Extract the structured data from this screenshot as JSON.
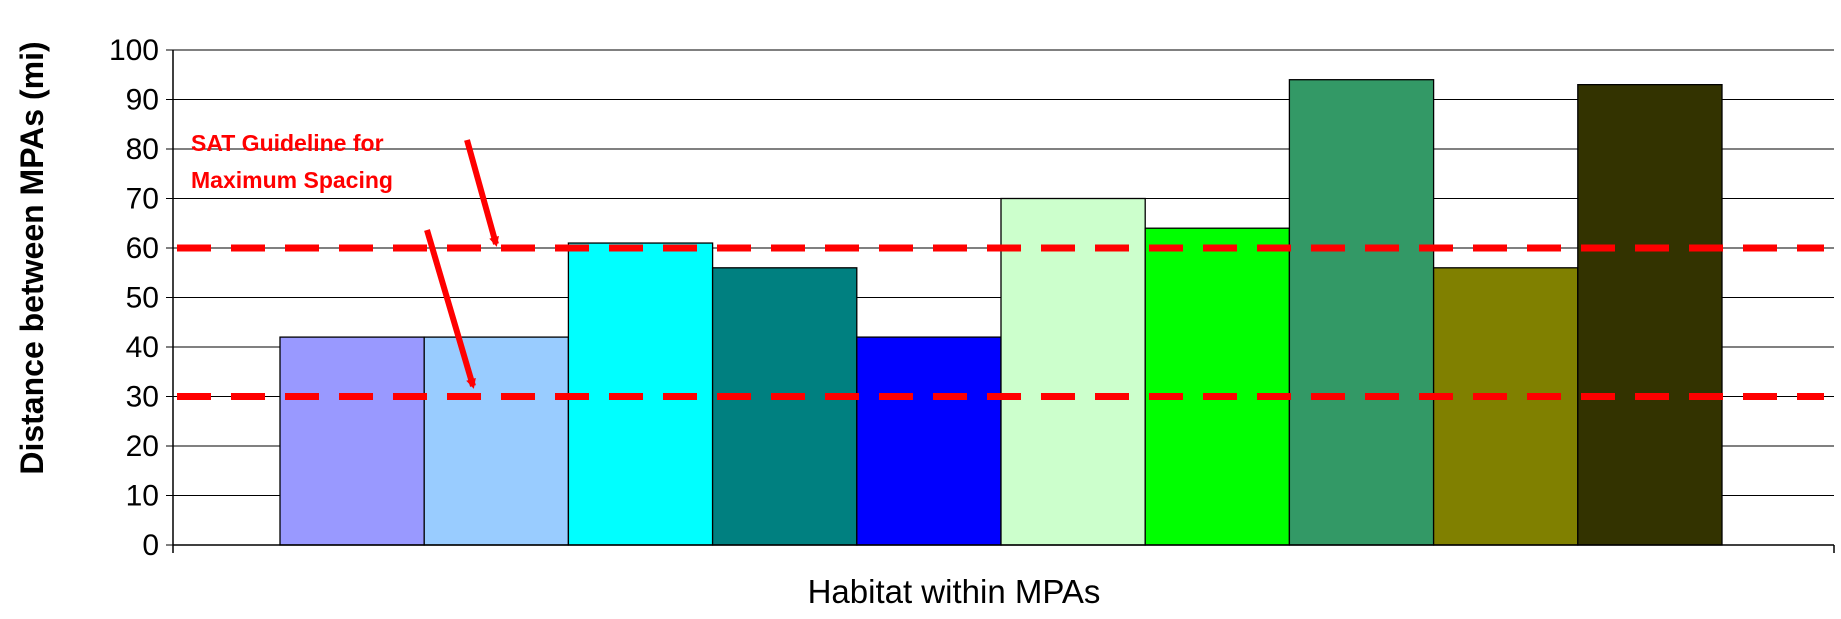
{
  "chart_data": {
    "type": "bar",
    "xlabel": "Habitat within MPAs",
    "ylabel": "Distance between MPAs (mi)",
    "ylim": [
      0,
      100
    ],
    "yticks": [
      0,
      10,
      20,
      30,
      40,
      50,
      60,
      70,
      80,
      90,
      100
    ],
    "grid": true,
    "legend": "none",
    "bars": [
      {
        "value": 42,
        "color": "#9999FF"
      },
      {
        "value": 42,
        "color": "#99CCFF"
      },
      {
        "value": 61,
        "color": "#00FFFF"
      },
      {
        "value": 56,
        "color": "#008080"
      },
      {
        "value": 42,
        "color": "#0000FF"
      },
      {
        "value": 70,
        "color": "#CCFFCC"
      },
      {
        "value": 64,
        "color": "#00FF00"
      },
      {
        "value": 94,
        "color": "#339966"
      },
      {
        "value": 56,
        "color": "#808000"
      },
      {
        "value": 93,
        "color": "#333300"
      }
    ],
    "reference_lines": [
      {
        "value": 60,
        "color": "#FF0000",
        "style": "dashed"
      },
      {
        "value": 30,
        "color": "#FF0000",
        "style": "dashed"
      }
    ],
    "annotation": {
      "lines": [
        "SAT Guideline for",
        "Maximum Spacing"
      ],
      "color": "#FF0000"
    }
  }
}
